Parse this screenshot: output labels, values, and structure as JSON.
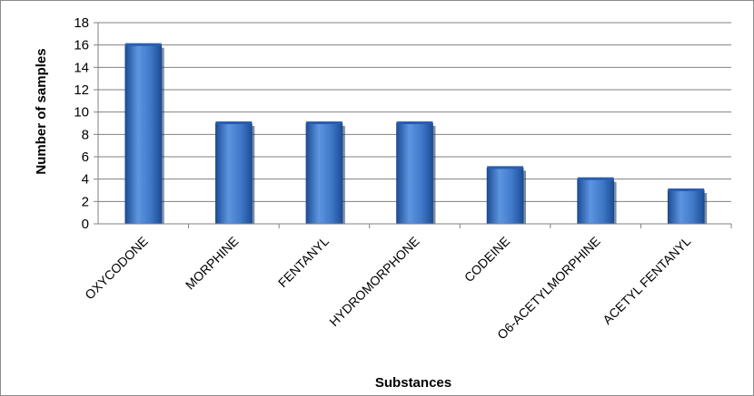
{
  "chart_data": {
    "type": "bar",
    "title": "",
    "xlabel": "Substances",
    "ylabel": "Number of samples",
    "categories": [
      "OXYCODONE",
      "MORPHINE",
      "FENTANYL",
      "HYDROMORPHONE",
      "CODEINE",
      "O6-ACETYLMORPHINE",
      "ACETYL FENTANYL"
    ],
    "values": [
      16,
      9,
      9,
      9,
      5,
      4,
      3
    ],
    "ylim": [
      0,
      18
    ],
    "yticks": [
      "0",
      "2",
      "4",
      "6",
      "8",
      "10",
      "12",
      "14",
      "16",
      "18"
    ],
    "grid": true,
    "legend": "none",
    "colors": {
      "bar_dark": "#1d4d96",
      "bar_mid": "#3f78c8",
      "bar_light": "#5d95e0",
      "grid": "#808080"
    }
  }
}
